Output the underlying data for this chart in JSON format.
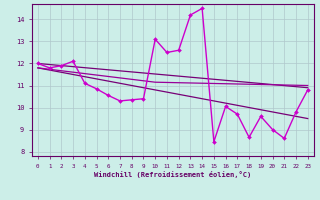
{
  "xlabel": "Windchill (Refroidissement éolien,°C)",
  "xlim": [
    -0.5,
    23.5
  ],
  "ylim": [
    7.8,
    14.7
  ],
  "yticks": [
    8,
    9,
    10,
    11,
    12,
    13,
    14
  ],
  "xticks": [
    0,
    1,
    2,
    3,
    4,
    5,
    6,
    7,
    8,
    9,
    10,
    11,
    12,
    13,
    14,
    15,
    16,
    17,
    18,
    19,
    20,
    21,
    22,
    23
  ],
  "bg_color": "#cceee8",
  "grid_color": "#b0c8cc",
  "line1_x": [
    0,
    1,
    2,
    3,
    4,
    5,
    6,
    7,
    8,
    9,
    10,
    11,
    12,
    13,
    14,
    15,
    16,
    17,
    18,
    19,
    20,
    21,
    22,
    23
  ],
  "line1_y": [
    12.0,
    11.8,
    11.9,
    12.1,
    11.1,
    10.85,
    10.55,
    10.3,
    10.35,
    10.4,
    13.1,
    12.5,
    12.6,
    14.2,
    14.5,
    8.45,
    10.05,
    9.7,
    8.65,
    9.6,
    9.0,
    8.6,
    9.8,
    10.8
  ],
  "line1_color": "#cc00cc",
  "line2_x": [
    0,
    23
  ],
  "line2_y": [
    12.0,
    10.9
  ],
  "line2_color": "#770077",
  "line3_x": [
    0,
    23
  ],
  "line3_y": [
    11.8,
    9.5
  ],
  "line3_color": "#770077",
  "line4_x": [
    0,
    10,
    23
  ],
  "line4_y": [
    11.8,
    11.15,
    11.0
  ],
  "line4_color": "#990099",
  "tick_color": "#660066",
  "label_color": "#660066",
  "spine_color": "#660066"
}
